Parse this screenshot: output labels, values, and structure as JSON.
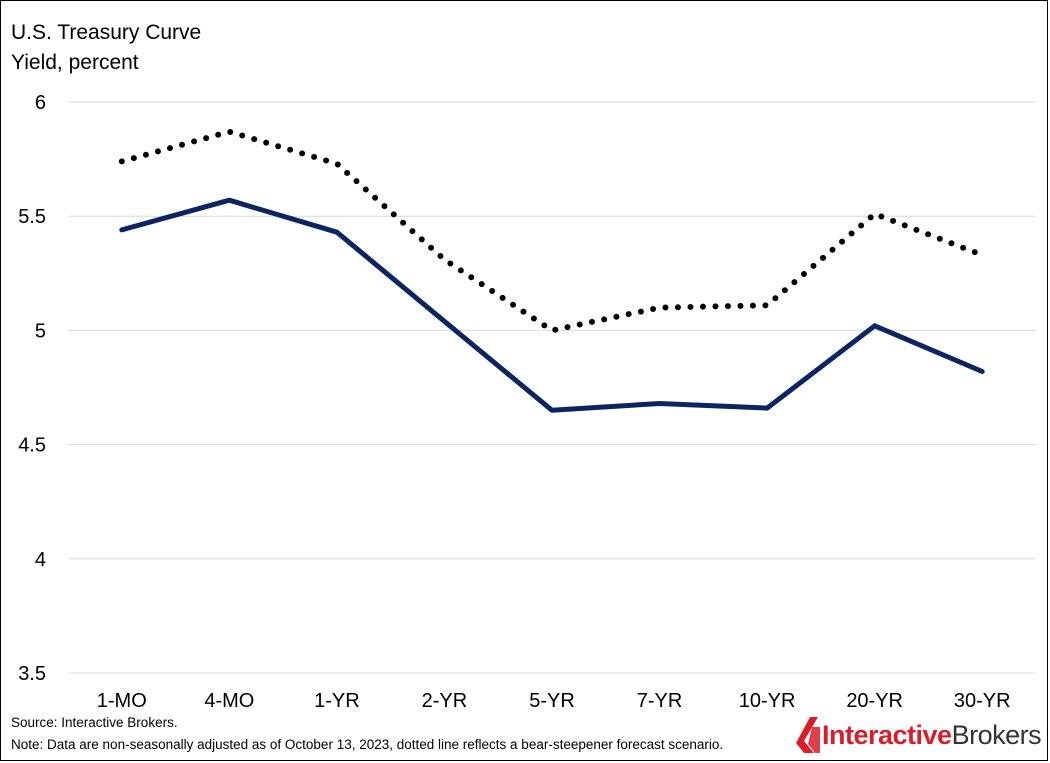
{
  "title": "U.S. Treasury Curve",
  "subtitle": "Yield, percent",
  "source": "Source: Interactive Brokers.",
  "note": "Note: Data are non-seasonally adjusted as of October 13, 2023, dotted line reflects a bear-steepener forecast scenario.",
  "logo": {
    "bold": "Interactive",
    "light": "Brokers",
    "icon": "ib-logo-icon"
  },
  "colors": {
    "solid": "#0c2461",
    "dotted": "#000000",
    "grid": "#d9d9d9",
    "logo_red": "#d81e2a"
  },
  "chart_data": {
    "type": "line",
    "title": "U.S. Treasury Curve",
    "ylabel": "Yield, percent",
    "categories": [
      "1-MO",
      "4-MO",
      "1-YR",
      "2-YR",
      "5-YR",
      "7-YR",
      "10-YR",
      "20-YR",
      "30-YR"
    ],
    "ylim": [
      3.5,
      6
    ],
    "yticks": [
      6,
      5.5,
      5,
      4.5,
      4,
      3.5
    ],
    "grid": true,
    "series": [
      {
        "style": "solid",
        "color": "#0c2461",
        "values": [
          5.44,
          5.57,
          5.43,
          5.04,
          4.65,
          4.68,
          4.66,
          5.02,
          4.82
        ]
      },
      {
        "style": "dotted",
        "color": "#000000",
        "values": [
          5.74,
          5.87,
          5.73,
          5.31,
          5.0,
          5.1,
          5.11,
          5.51,
          5.33
        ]
      }
    ]
  }
}
